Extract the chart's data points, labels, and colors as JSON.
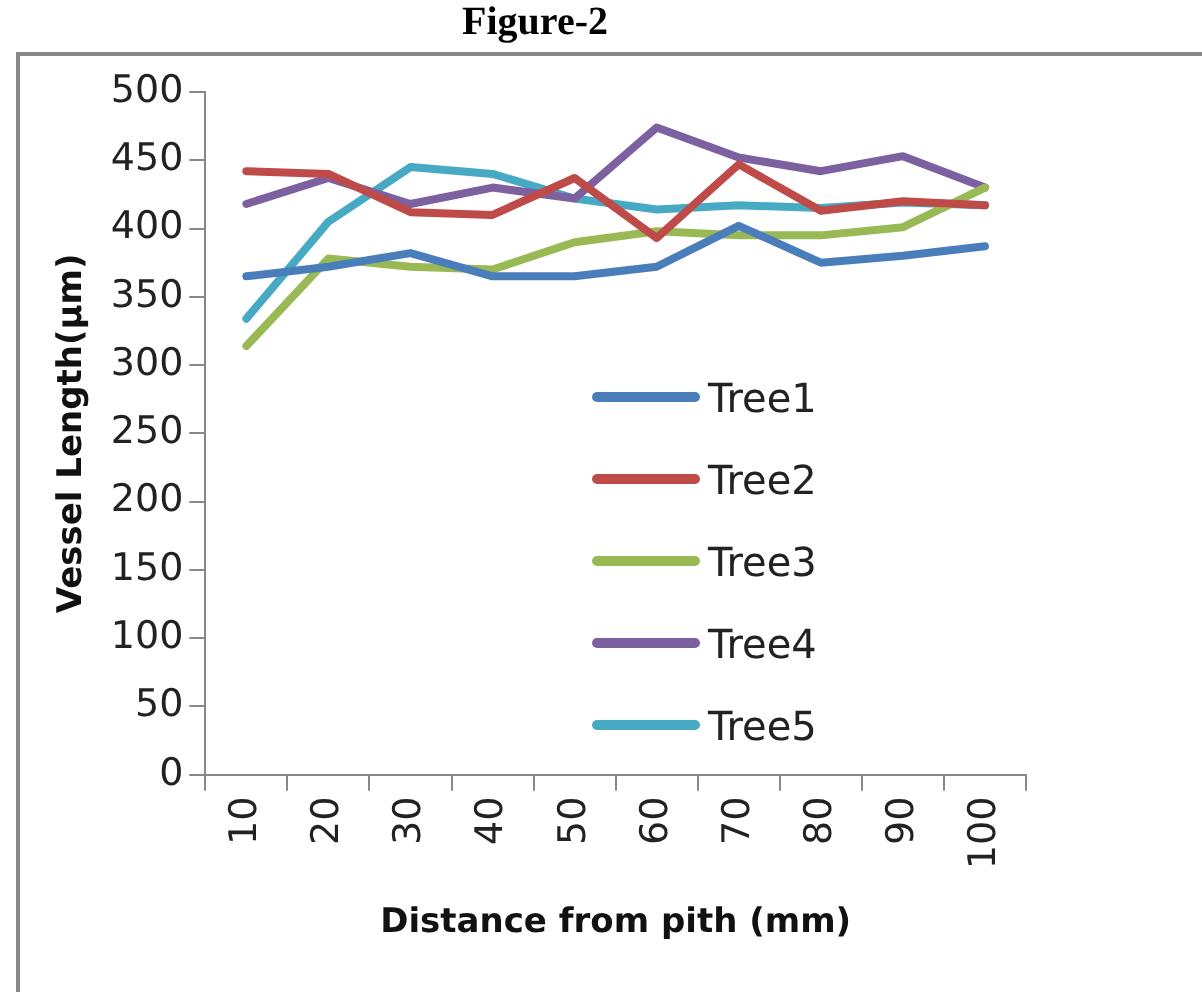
{
  "chart_data": {
    "type": "line",
    "title": "Figure-2",
    "xlabel": "Distance from pith (mm)",
    "ylabel": "Vessel Length(µm)",
    "categories": [
      "10",
      "20",
      "30",
      "40",
      "50",
      "60",
      "70",
      "80",
      "90",
      "100"
    ],
    "ylim": [
      0,
      500
    ],
    "yticks": [
      0,
      50,
      100,
      150,
      200,
      250,
      300,
      350,
      400,
      450,
      500
    ],
    "grid": false,
    "legend": "right",
    "marker": "none",
    "line_style": "solid",
    "series": [
      {
        "name": "Tree1",
        "color": "#4a7ebb",
        "values": [
          365,
          372,
          382,
          365,
          365,
          372,
          402,
          375,
          380,
          387
        ]
      },
      {
        "name": "Tree2",
        "color": "#be4b48",
        "values": [
          442,
          440,
          412,
          410,
          437,
          393,
          447,
          413,
          420,
          417
        ]
      },
      {
        "name": "Tree3",
        "color": "#98b954",
        "values": [
          314,
          378,
          372,
          370,
          390,
          398,
          395,
          395,
          401,
          430
        ]
      },
      {
        "name": "Tree4",
        "color": "#7d60a0",
        "values": [
          418,
          437,
          418,
          430,
          422,
          474,
          452,
          442,
          453,
          430
        ]
      },
      {
        "name": "Tree5",
        "color": "#46aac5",
        "values": [
          334,
          405,
          445,
          440,
          422,
          414,
          417,
          415,
          419,
          417
        ]
      }
    ]
  }
}
